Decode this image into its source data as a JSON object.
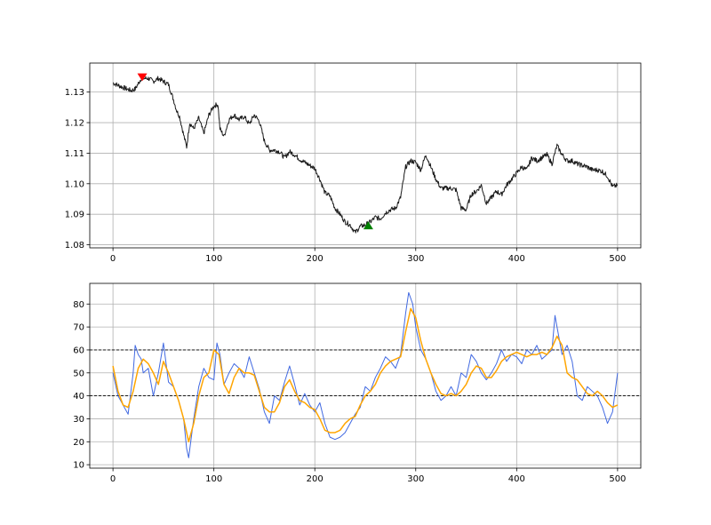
{
  "chart_data": [
    {
      "type": "line",
      "grid": true,
      "xlim": [
        -23,
        523
      ],
      "ylim": [
        1.079,
        1.1395
      ],
      "x_ticks": [
        0,
        100,
        200,
        300,
        400,
        500
      ],
      "x_tick_labels": [
        "0",
        "100",
        "200",
        "300",
        "400",
        "500"
      ],
      "y_ticks": [
        1.08,
        1.09,
        1.1,
        1.11,
        1.12,
        1.13
      ],
      "y_tick_labels": [
        "1.08",
        "1.09",
        "1.10",
        "1.11",
        "1.12",
        "1.13"
      ],
      "colors": {
        "price": "#1a1a1a",
        "sell_marker": "#ff0000",
        "buy_marker": "#008000"
      },
      "series": [
        {
          "x": [
            0,
            10,
            18,
            22,
            28,
            35,
            40,
            45,
            50,
            55,
            60,
            63,
            66,
            70,
            73,
            76,
            80,
            85,
            90,
            95,
            100,
            104,
            106,
            110,
            115,
            120,
            125,
            130,
            135,
            140,
            145,
            150,
            155,
            160,
            165,
            170,
            175,
            180,
            185,
            190,
            195,
            200,
            205,
            210,
            215,
            220,
            225,
            230,
            235,
            240,
            245,
            250,
            255,
            260,
            265,
            270,
            275,
            280,
            285,
            290,
            295,
            300,
            305,
            310,
            315,
            320,
            325,
            330,
            335,
            340,
            345,
            350,
            355,
            360,
            365,
            370,
            375,
            380,
            385,
            390,
            395,
            400,
            405,
            410,
            415,
            420,
            425,
            430,
            435,
            440,
            445,
            450,
            455,
            460,
            465,
            470,
            475,
            480,
            485,
            490,
            495,
            500
          ],
          "y": [
            1.133,
            1.1315,
            1.1305,
            1.131,
            1.1345,
            1.1345,
            1.1335,
            1.1345,
            1.1335,
            1.1325,
            1.1275,
            1.124,
            1.122,
            1.116,
            1.112,
            1.12,
            1.118,
            1.1215,
            1.1165,
            1.1225,
            1.1255,
            1.126,
            1.118,
            1.1155,
            1.121,
            1.1225,
            1.121,
            1.122,
            1.1195,
            1.1225,
            1.1205,
            1.114,
            1.111,
            1.111,
            1.1105,
            1.1085,
            1.1105,
            1.1095,
            1.108,
            1.107,
            1.106,
            1.105,
            1.1015,
            1.097,
            1.096,
            1.092,
            1.09,
            1.0875,
            1.0865,
            1.084,
            1.086,
            1.0865,
            1.0875,
            1.089,
            1.0885,
            1.0905,
            1.0915,
            1.092,
            1.0955,
            1.1055,
            1.1075,
            1.107,
            1.1045,
            1.1095,
            1.1055,
            1.1015,
            1.0985,
            1.0985,
            1.0985,
            1.098,
            1.092,
            1.0915,
            1.0965,
            1.0975,
            1.0995,
            1.0935,
            1.0955,
            1.0975,
            1.0965,
            1.0995,
            1.1015,
            1.1035,
            1.1055,
            1.1045,
            1.1085,
            1.1075,
            1.1085,
            1.1095,
            1.1065,
            1.1125,
            1.1095,
            1.1075,
            1.1075,
            1.1065,
            1.106,
            1.1055,
            1.1045,
            1.1045,
            1.104,
            1.1025,
            1.099,
            1.0995
          ]
        }
      ],
      "markers": [
        {
          "kind": "sell",
          "shape": "triangle-down",
          "x": 29,
          "y": 1.135
        },
        {
          "kind": "buy",
          "shape": "triangle-up",
          "x": 253,
          "y": 1.0862
        }
      ]
    },
    {
      "type": "line",
      "grid": true,
      "xlim": [
        -23,
        523
      ],
      "ylim": [
        8.5,
        89
      ],
      "x_ticks": [
        0,
        100,
        200,
        300,
        400,
        500
      ],
      "x_tick_labels": [
        "0",
        "100",
        "200",
        "300",
        "400",
        "500"
      ],
      "y_ticks": [
        10,
        20,
        30,
        40,
        50,
        60,
        70,
        80
      ],
      "y_tick_labels": [
        "10",
        "20",
        "30",
        "40",
        "50",
        "60",
        "70",
        "80"
      ],
      "reference_lines": [
        60,
        40
      ],
      "colors": {
        "indicator": "#4169e1",
        "signal": "#ffa500",
        "reference": "#000000"
      },
      "series": [
        {
          "x": [
            0,
            5,
            10,
            15,
            20,
            22,
            25,
            28,
            30,
            35,
            40,
            45,
            50,
            55,
            60,
            65,
            70,
            73,
            75,
            80,
            85,
            90,
            95,
            100,
            103,
            106,
            110,
            115,
            120,
            125,
            130,
            135,
            140,
            145,
            150,
            155,
            160,
            165,
            170,
            175,
            180,
            185,
            190,
            195,
            200,
            205,
            210,
            215,
            220,
            225,
            230,
            235,
            240,
            245,
            250,
            255,
            260,
            265,
            270,
            275,
            280,
            285,
            290,
            293,
            297,
            300,
            305,
            310,
            315,
            320,
            325,
            330,
            335,
            340,
            345,
            350,
            355,
            360,
            365,
            370,
            375,
            380,
            385,
            390,
            395,
            400,
            405,
            410,
            415,
            420,
            425,
            430,
            435,
            438,
            440,
            445,
            450,
            455,
            460,
            465,
            470,
            475,
            480,
            485,
            490,
            495,
            500
          ],
          "y": [
            50,
            40,
            36,
            32,
            50,
            62,
            58,
            56,
            50,
            52,
            40,
            50,
            63,
            46,
            44,
            38,
            30,
            17,
            13,
            30,
            44,
            52,
            48,
            47,
            63,
            58,
            45,
            50,
            54,
            52,
            48,
            57,
            50,
            43,
            33,
            28,
            40,
            38,
            46,
            53,
            45,
            36,
            41,
            36,
            33,
            37,
            28,
            22,
            21,
            22,
            24,
            28,
            32,
            35,
            44,
            42,
            48,
            52,
            57,
            55,
            52,
            58,
            76,
            85,
            80,
            70,
            60,
            56,
            50,
            42,
            38,
            40,
            44,
            40,
            50,
            48,
            58,
            55,
            50,
            47,
            50,
            54,
            60,
            55,
            58,
            57,
            54,
            60,
            58,
            62,
            56,
            58,
            60,
            75,
            70,
            58,
            62,
            55,
            40,
            38,
            44,
            42,
            40,
            35,
            28,
            33,
            50
          ]
        },
        {
          "x": [
            0,
            5,
            10,
            15,
            20,
            25,
            30,
            35,
            40,
            45,
            50,
            55,
            60,
            65,
            70,
            75,
            80,
            85,
            90,
            95,
            100,
            105,
            110,
            115,
            120,
            125,
            130,
            135,
            140,
            145,
            150,
            155,
            160,
            165,
            170,
            175,
            180,
            185,
            190,
            195,
            200,
            205,
            210,
            215,
            220,
            225,
            230,
            235,
            240,
            245,
            250,
            255,
            260,
            265,
            270,
            275,
            280,
            285,
            290,
            295,
            300,
            305,
            310,
            315,
            320,
            325,
            330,
            335,
            340,
            345,
            350,
            355,
            360,
            365,
            370,
            375,
            380,
            385,
            390,
            395,
            400,
            405,
            410,
            415,
            420,
            425,
            430,
            435,
            440,
            445,
            450,
            455,
            460,
            465,
            470,
            475,
            480,
            485,
            490,
            495,
            500
          ],
          "y": [
            53,
            42,
            36,
            35,
            42,
            52,
            56,
            54,
            50,
            45,
            55,
            50,
            44,
            38,
            30,
            20,
            28,
            40,
            48,
            50,
            60,
            58,
            45,
            41,
            48,
            52,
            50,
            50,
            49,
            42,
            35,
            33,
            33,
            37,
            44,
            47,
            42,
            38,
            37,
            35,
            34,
            30,
            25,
            24,
            24,
            25,
            28,
            30,
            31,
            36,
            40,
            42,
            45,
            50,
            53,
            55,
            56,
            57,
            68,
            78,
            74,
            64,
            56,
            50,
            45,
            41,
            40,
            41,
            40,
            42,
            45,
            50,
            53,
            52,
            48,
            48,
            51,
            55,
            57,
            58,
            59,
            58,
            57,
            58,
            58,
            59,
            58,
            61,
            66,
            62,
            50,
            48,
            47,
            44,
            41,
            40,
            42,
            40,
            37,
            35,
            36
          ]
        }
      ]
    }
  ]
}
